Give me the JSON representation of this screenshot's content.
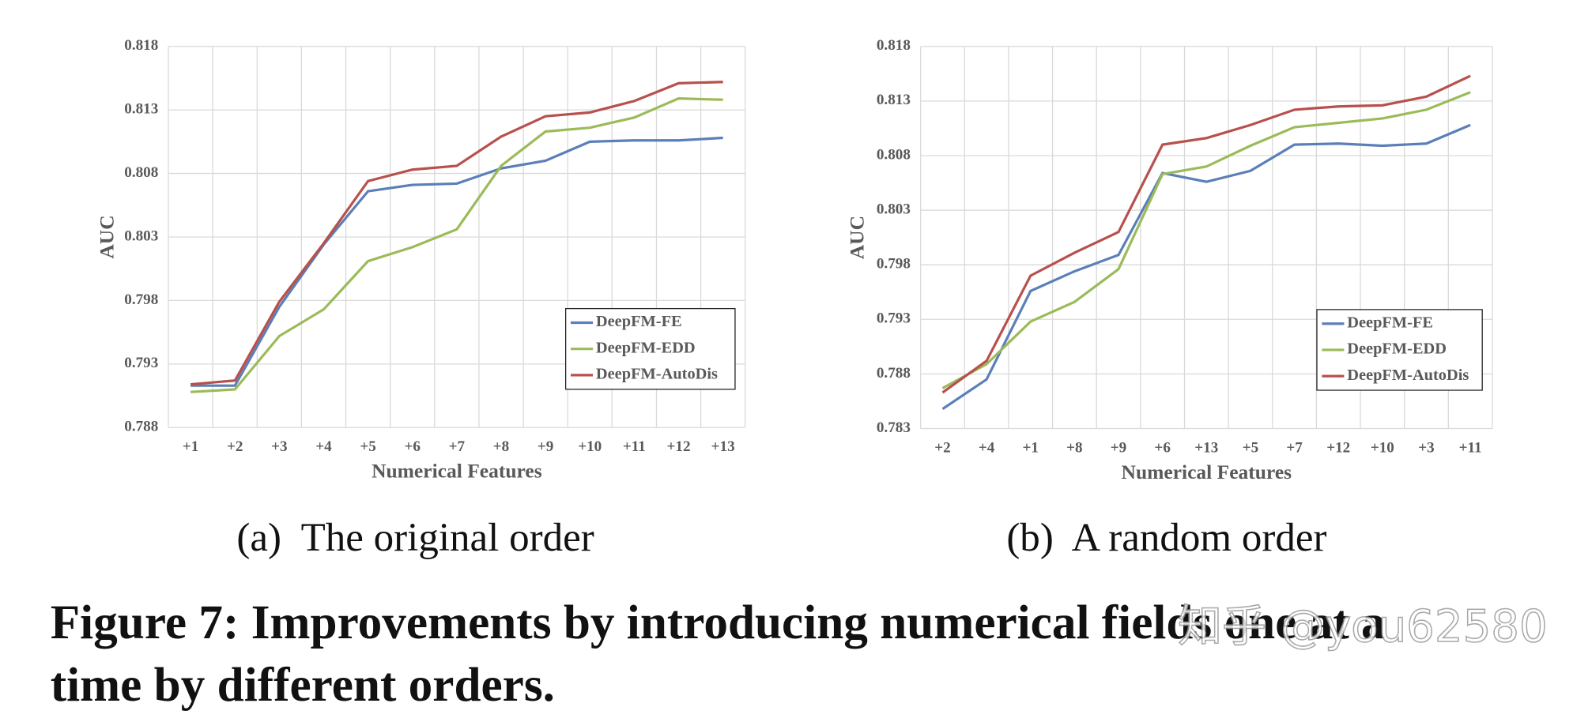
{
  "chart_data": [
    {
      "type": "line",
      "subcaption": "(a)  The original order",
      "x_label": "Numerical Features",
      "y_label": "AUC",
      "categories": [
        "+1",
        "+2",
        "+3",
        "+4",
        "+5",
        "+6",
        "+7",
        "+8",
        "+9",
        "+10",
        "+11",
        "+12",
        "+13"
      ],
      "series": [
        {
          "name": "DeepFM-FE",
          "color": "#5b7fb8",
          "values": [
            0.7913,
            0.7913,
            0.7975,
            0.8024,
            0.8066,
            0.8071,
            0.8072,
            0.8084,
            0.809,
            0.8105,
            0.8106,
            0.8106,
            0.8108
          ]
        },
        {
          "name": "DeepFM-EDD",
          "color": "#9bbb59",
          "values": [
            0.7908,
            0.791,
            0.7952,
            0.7973,
            0.8011,
            0.8022,
            0.8036,
            0.8086,
            0.8113,
            0.8116,
            0.8124,
            0.8139,
            0.8138
          ]
        },
        {
          "name": "DeepFM-AutoDis",
          "color": "#b8504c",
          "values": [
            0.7914,
            0.7917,
            0.7979,
            0.8025,
            0.8074,
            0.8083,
            0.8086,
            0.8109,
            0.8125,
            0.8128,
            0.8137,
            0.8151,
            0.8152
          ]
        }
      ],
      "ylim": [
        0.788,
        0.818
      ],
      "yticks": [
        0.788,
        0.793,
        0.798,
        0.803,
        0.808,
        0.813,
        0.818
      ],
      "grid": true,
      "legend": "lower right"
    },
    {
      "type": "line",
      "subcaption": "(b)  A random order",
      "x_label": "Numerical Features",
      "y_label": "AUC",
      "categories": [
        "+2",
        "+4",
        "+1",
        "+8",
        "+9",
        "+6",
        "+13",
        "+5",
        "+7",
        "+12",
        "+10",
        "+3",
        "+11"
      ],
      "series": [
        {
          "name": "DeepFM-FE",
          "color": "#5b7fb8",
          "values": [
            0.7848,
            0.7875,
            0.7956,
            0.7974,
            0.7989,
            0.8064,
            0.8056,
            0.8066,
            0.809,
            0.8091,
            0.8089,
            0.8091,
            0.8108
          ]
        },
        {
          "name": "DeepFM-EDD",
          "color": "#9bbb59",
          "values": [
            0.7867,
            0.7889,
            0.7928,
            0.7946,
            0.7976,
            0.8063,
            0.807,
            0.8089,
            0.8106,
            0.811,
            0.8114,
            0.8122,
            0.8138
          ]
        },
        {
          "name": "DeepFM-AutoDis",
          "color": "#b8504c",
          "values": [
            0.7863,
            0.7892,
            0.797,
            0.7991,
            0.801,
            0.809,
            0.8096,
            0.8108,
            0.8122,
            0.8125,
            0.8126,
            0.8134,
            0.8153
          ]
        }
      ],
      "ylim": [
        0.783,
        0.818
      ],
      "yticks": [
        0.783,
        0.788,
        0.793,
        0.798,
        0.803,
        0.808,
        0.813,
        0.818
      ],
      "grid": true,
      "legend": "lower right"
    }
  ],
  "caption": [
    "Figure 7: Improvements by introducing numerical fields one at a",
    "time by different orders."
  ],
  "watermark": "知乎 @you62580"
}
